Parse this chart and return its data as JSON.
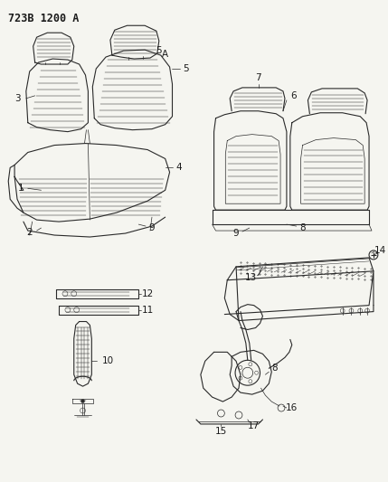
{
  "title": "723B 1200 A",
  "bg_color": "#f5f5f0",
  "line_color": "#2a2a2a",
  "label_color": "#1a1a1a",
  "label_fontsize": 7.5,
  "title_fontsize": 8.5
}
